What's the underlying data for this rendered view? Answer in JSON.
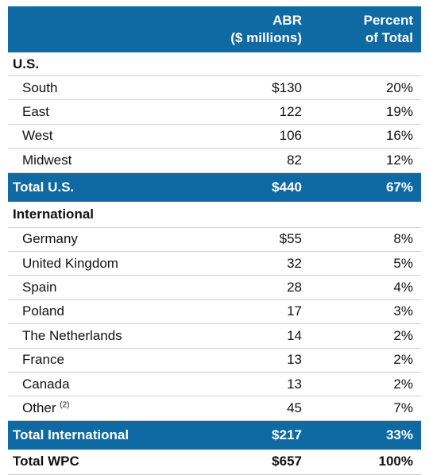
{
  "header": {
    "abr": [
      "ABR",
      "($ millions)"
    ],
    "percent": [
      "Percent",
      "of Total"
    ]
  },
  "us": {
    "title": "U.S.",
    "rows": [
      [
        "South",
        "$130",
        "20%"
      ],
      [
        "East",
        "122",
        "19%"
      ],
      [
        "West",
        "106",
        "16%"
      ],
      [
        "Midwest",
        "82",
        "12%"
      ]
    ],
    "total": [
      "Total U.S.",
      "$440",
      "67%"
    ]
  },
  "international": {
    "title": "International",
    "rows": [
      [
        "Germany",
        "$55",
        "8%"
      ],
      [
        "United Kingdom",
        "32",
        "5%"
      ],
      [
        "Spain",
        "28",
        "4%"
      ],
      [
        "Poland",
        "17",
        "3%"
      ],
      [
        "The Netherlands",
        "14",
        "2%"
      ],
      [
        "France",
        "13",
        "2%"
      ],
      [
        "Canada",
        "13",
        "2%"
      ],
      [
        "Other",
        "45",
        "7%"
      ]
    ],
    "other_note": "(2)",
    "total": [
      "Total International",
      "$217",
      "33%"
    ]
  },
  "grand_total": [
    "Total WPC",
    "$657",
    "100%"
  ]
}
